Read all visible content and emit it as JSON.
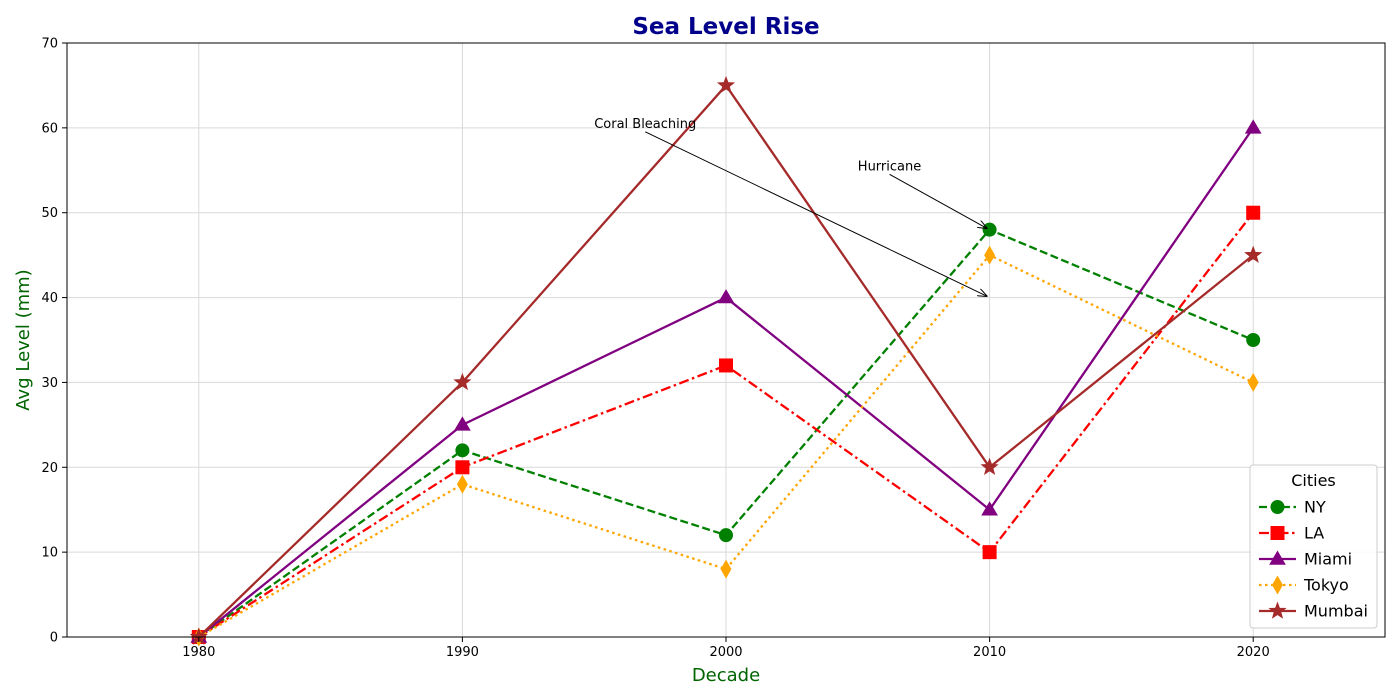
{
  "chart_data": {
    "type": "line",
    "title": "Sea Level Rise",
    "xlabel": "Decade",
    "ylabel": "Avg Level (mm)",
    "x": [
      1980,
      1990,
      2000,
      2010,
      2020
    ],
    "xlim": [
      1975,
      2025
    ],
    "ylim": [
      0,
      70
    ],
    "xticks": [
      1980,
      1990,
      2000,
      2010,
      2020
    ],
    "yticks": [
      0,
      10,
      20,
      30,
      40,
      50,
      60,
      70
    ],
    "grid": true,
    "legend": {
      "title": "Cities",
      "placement": "lower-right"
    },
    "colors": {
      "title": "#00008b",
      "axis_title": "#006400",
      "grid": "#d9d9d9"
    },
    "series": [
      {
        "name": "NY",
        "values": [
          0,
          22,
          12,
          48,
          35
        ],
        "color": "#008000",
        "dash": "dashed",
        "marker": "circle"
      },
      {
        "name": "LA",
        "values": [
          0,
          20,
          32,
          10,
          50
        ],
        "color": "#ff0000",
        "dash": "dashdot",
        "marker": "square"
      },
      {
        "name": "Miami",
        "values": [
          0,
          25,
          40,
          15,
          60
        ],
        "color": "#800080",
        "dash": "solid",
        "marker": "triangle"
      },
      {
        "name": "Tokyo",
        "values": [
          0,
          18,
          8,
          45,
          30
        ],
        "color": "#ffa500",
        "dash": "dotted",
        "marker": "diamond"
      },
      {
        "name": "Mumbai",
        "values": [
          0,
          30,
          65,
          20,
          45
        ],
        "color": "#a52a2a",
        "dash": "solid",
        "marker": "star"
      }
    ],
    "annotations": [
      {
        "text": "Coral Bleaching",
        "text_at": [
          1995,
          60
        ],
        "arrow_to": [
          2010,
          40
        ]
      },
      {
        "text": "Hurricane",
        "text_at": [
          2005,
          55
        ],
        "arrow_to": [
          2010,
          48
        ]
      }
    ]
  }
}
